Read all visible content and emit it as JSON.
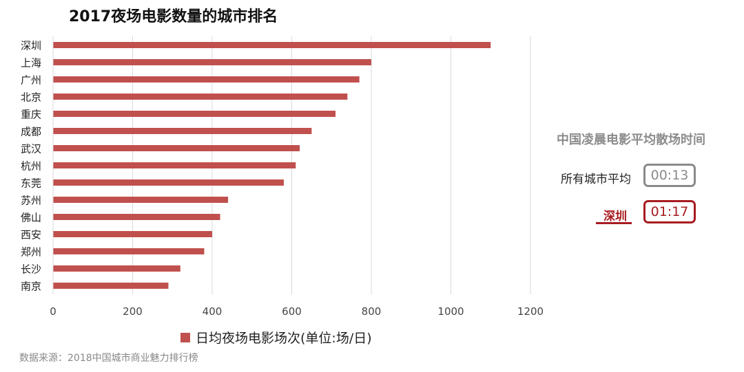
{
  "title": "2017夜场电影数量的城市排名",
  "chart_data": {
    "type": "bar",
    "orientation": "horizontal",
    "categories": [
      "深圳",
      "上海",
      "广州",
      "北京",
      "重庆",
      "成都",
      "武汉",
      "杭州",
      "东莞",
      "苏州",
      "佛山",
      "西安",
      "郑州",
      "长沙",
      "南京"
    ],
    "series": [
      {
        "name": "日均夜场电影场次(单位:场/日)",
        "values": [
          1100,
          800,
          770,
          740,
          710,
          650,
          620,
          610,
          580,
          440,
          420,
          400,
          380,
          320,
          290
        ]
      }
    ],
    "xlim": [
      0,
      1200
    ],
    "xticks": [
      0,
      200,
      400,
      600,
      800,
      1000,
      1200
    ],
    "grid": "vertical",
    "legend": "bottom",
    "bar_color": "#c0504d"
  },
  "source": "数据来源：2018中国城市商业魅力排行榜",
  "side_panel": {
    "title": "中国凌晨电影平均散场时间",
    "rows": [
      {
        "label": "所有城市平均",
        "time": "00:13",
        "color": "#8a8a8a"
      },
      {
        "label": "深圳",
        "time": "01:17",
        "color": "#a61b1f"
      }
    ]
  }
}
